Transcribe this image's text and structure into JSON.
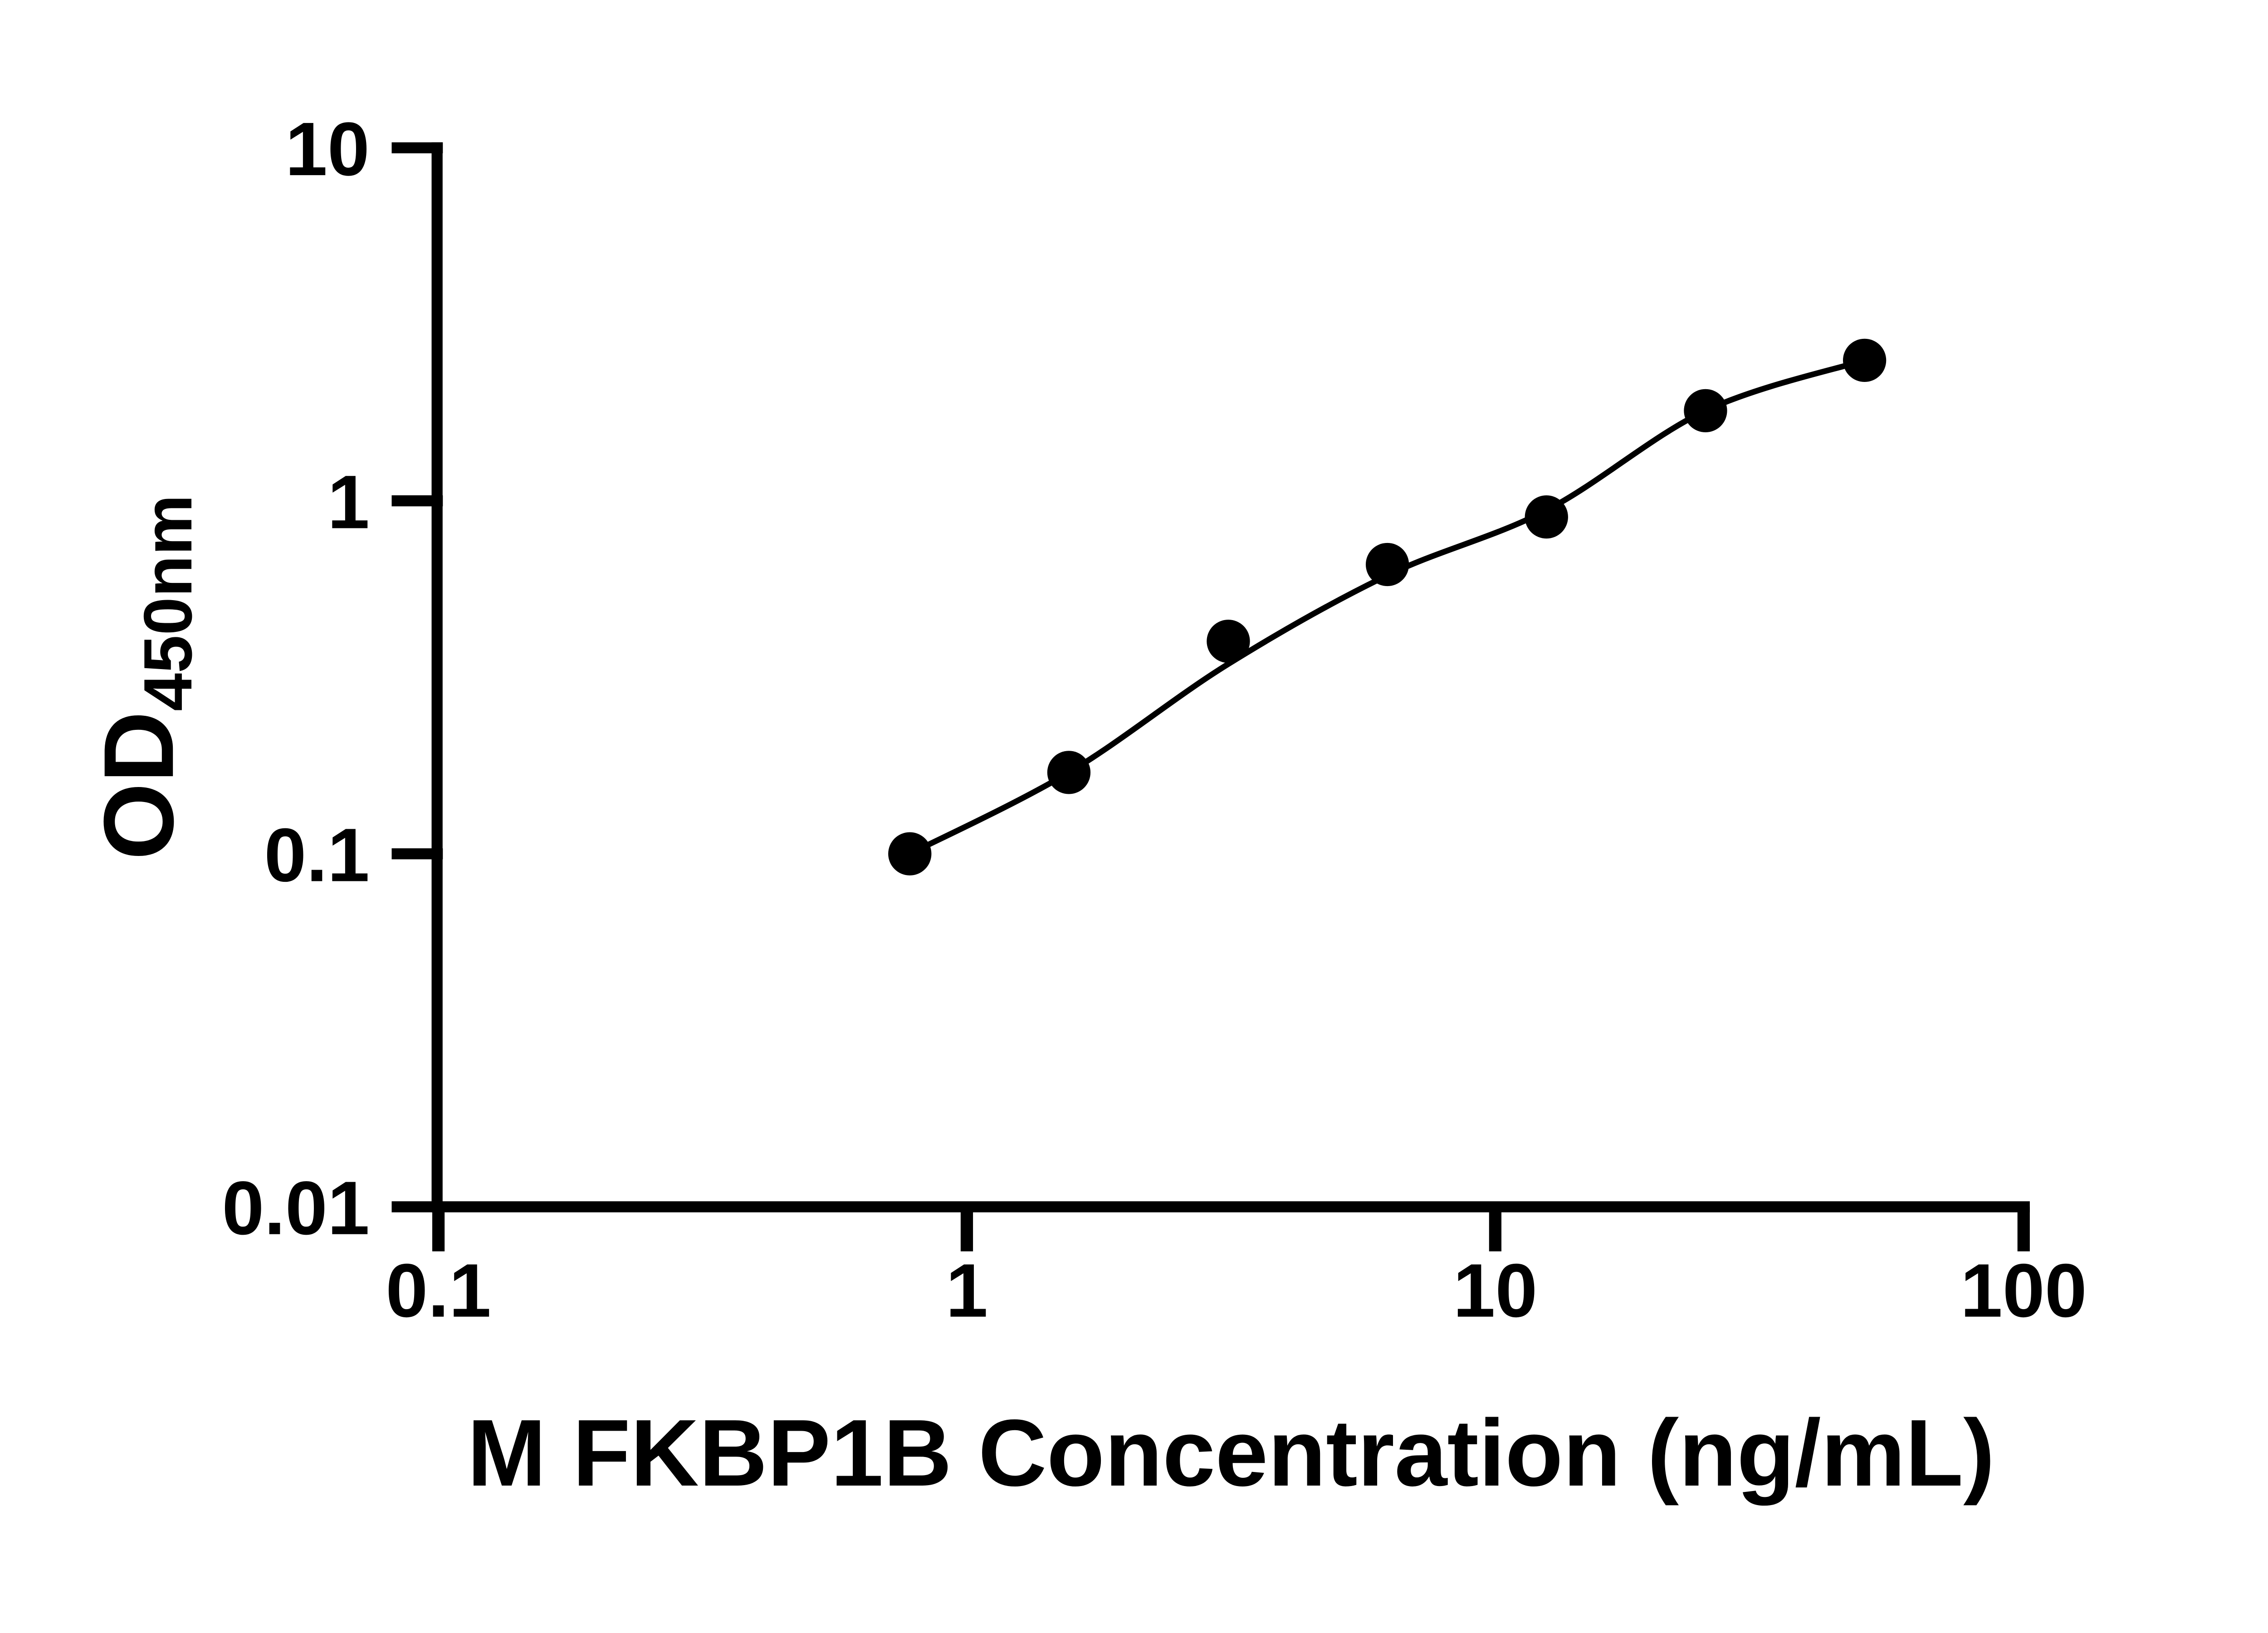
{
  "figure": {
    "background": "#ffffff",
    "ink_color": "#000000"
  },
  "chart_data": {
    "type": "scatter",
    "title": "",
    "xlabel": "M FKBP1B Concentration (ng/mL)",
    "ylabel": "OD",
    "ylabel_subscript": "450nm",
    "x_scale": "log",
    "y_scale": "log",
    "xlim": [
      0.1,
      100
    ],
    "ylim": [
      0.01,
      10
    ],
    "grid": "off",
    "legend": "none",
    "x_ticks": [
      {
        "value": 0.1,
        "label": "0.1"
      },
      {
        "value": 1,
        "label": "1"
      },
      {
        "value": 10,
        "label": "10"
      },
      {
        "value": 100,
        "label": "100"
      }
    ],
    "y_ticks": [
      {
        "value": 10,
        "label": "10"
      },
      {
        "value": 1,
        "label": "1"
      },
      {
        "value": 0.1,
        "label": "0.1"
      },
      {
        "value": 0.01,
        "label": "0.01"
      }
    ],
    "series": [
      {
        "name": "standard-curve-points",
        "x": [
          0.78,
          1.56,
          3.125,
          6.25,
          12.5,
          25,
          50
        ],
        "y": [
          0.1,
          0.17,
          0.4,
          0.66,
          0.9,
          1.8,
          2.5
        ]
      }
    ],
    "fit_line": {
      "name": "fitted-curve",
      "x": [
        0.78,
        1.56,
        3.125,
        6.25,
        12.5,
        25,
        50
      ],
      "y": [
        0.1,
        0.17,
        0.345,
        0.615,
        0.94,
        1.8,
        2.5
      ]
    },
    "marker": {
      "shape": "circle",
      "color": "#000000"
    },
    "line": {
      "color": "#000000"
    }
  }
}
